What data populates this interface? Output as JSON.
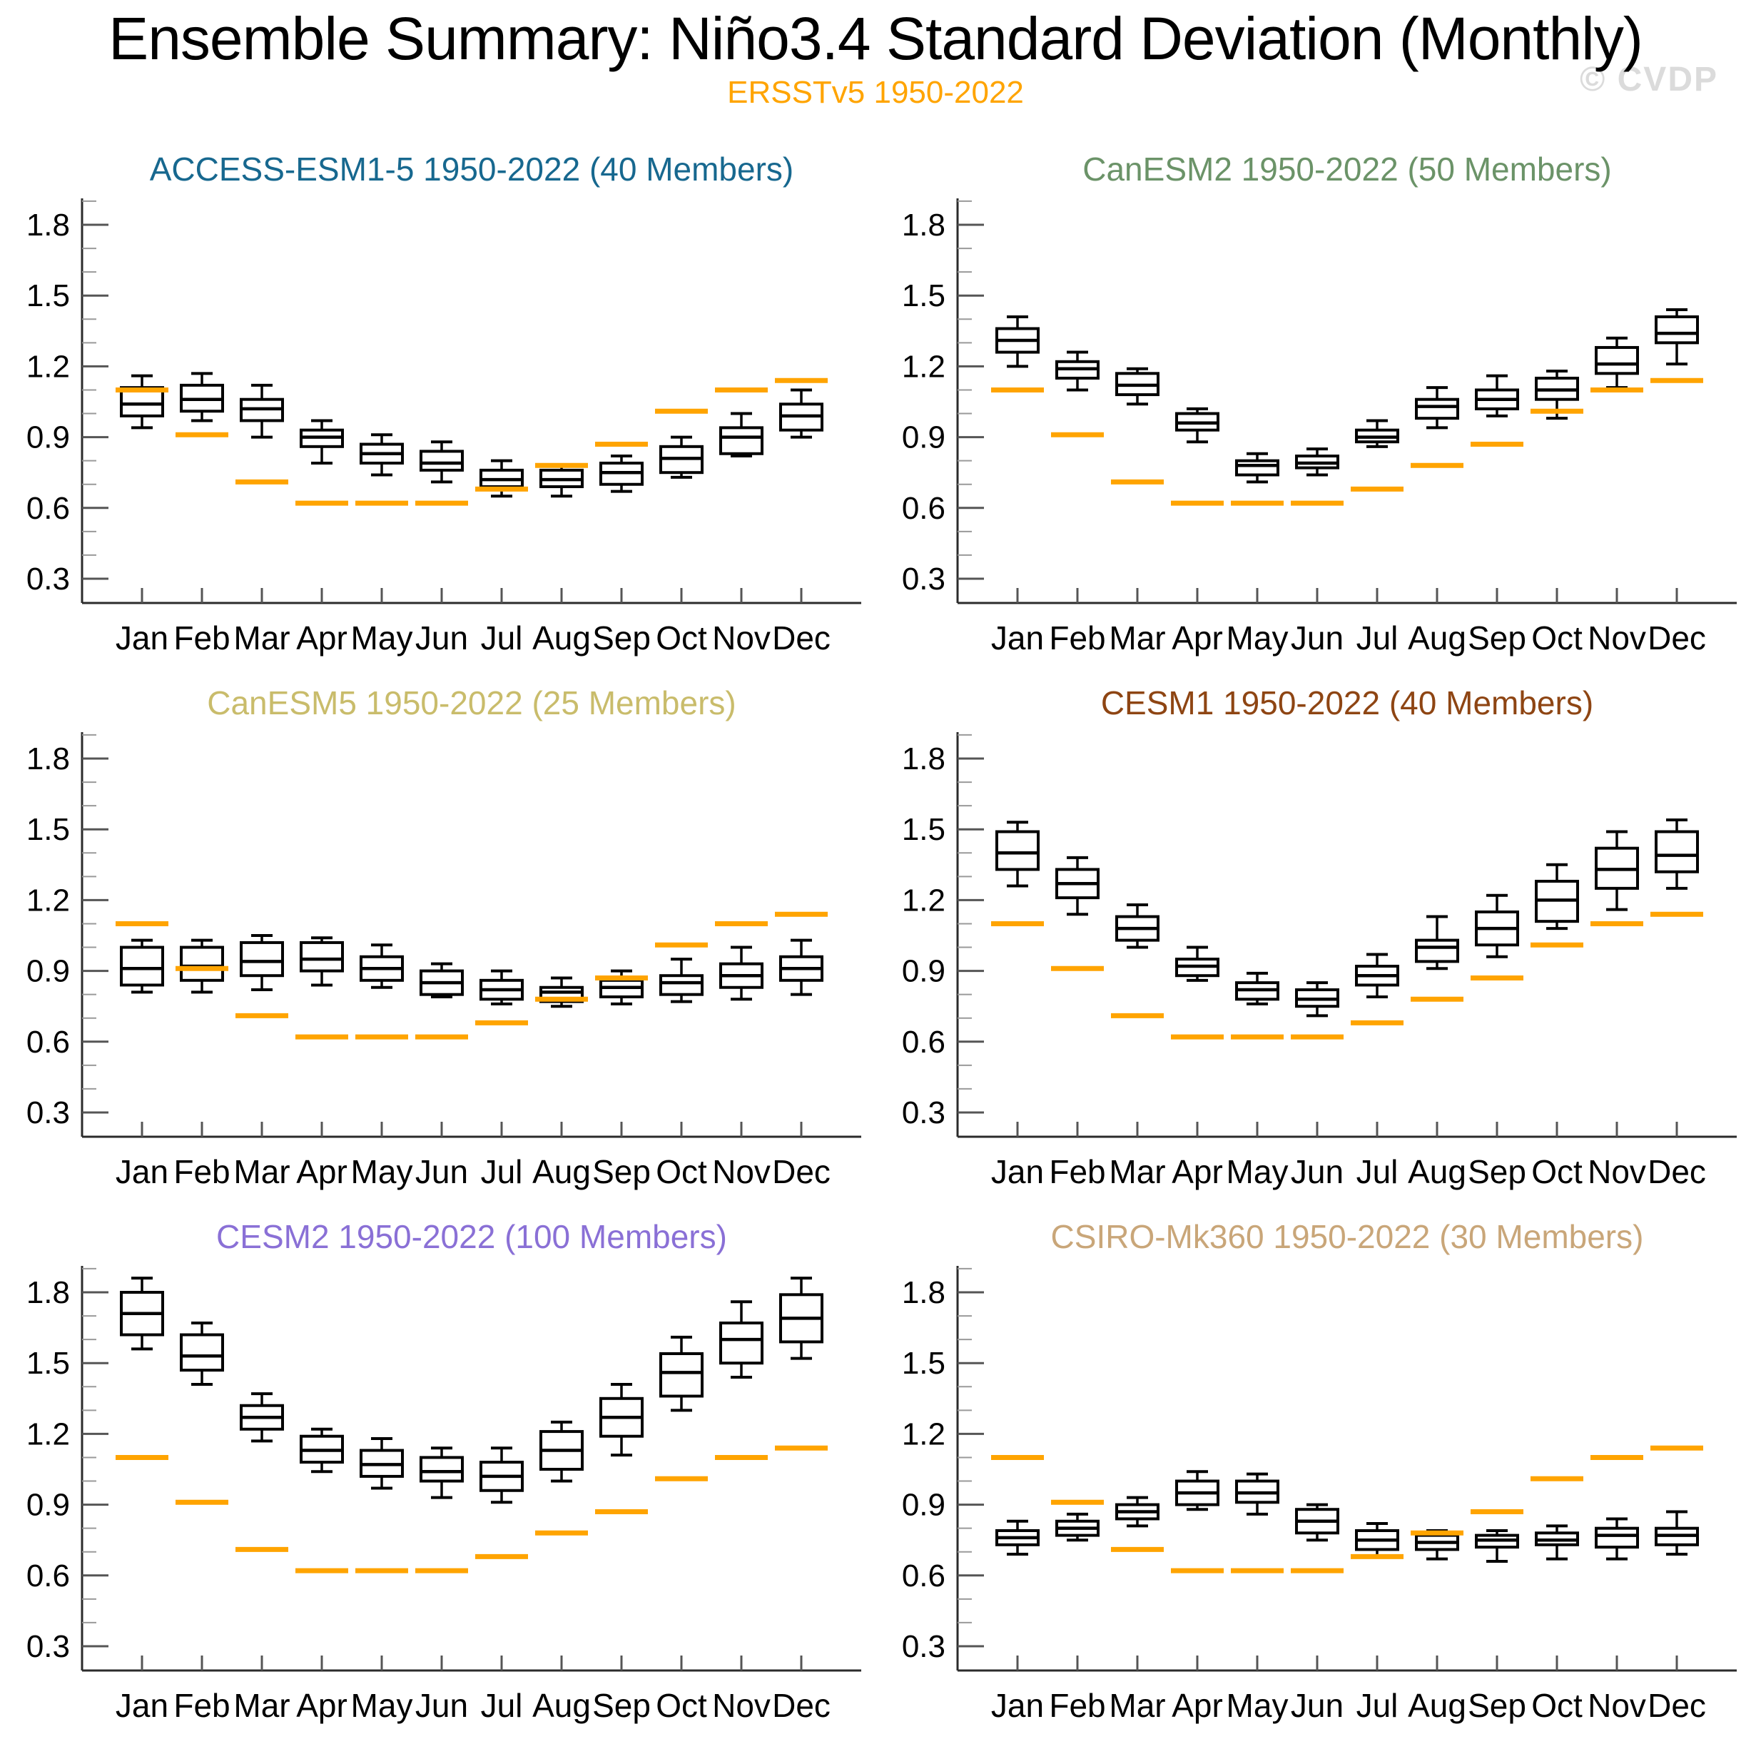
{
  "header": {
    "title": "Ensemble Summary: Niño3.4 Standard Deviation (Monthly)",
    "subtitle": "ERSSTv5 1950-2022",
    "watermark": "© CVDP"
  },
  "chart_data": {
    "type": "boxplot",
    "title": "Ensemble Summary: Niño3.4 Standard Deviation (Monthly)",
    "months": [
      "Jan",
      "Feb",
      "Mar",
      "Apr",
      "May",
      "Jun",
      "Jul",
      "Aug",
      "Sep",
      "Oct",
      "Nov",
      "Dec"
    ],
    "y_axis": {
      "major_ticks": [
        0.3,
        0.6,
        0.9,
        1.2,
        1.5,
        1.8
      ],
      "minor_step": 0.1,
      "minor_range": [
        0.4,
        1.9
      ],
      "range": [
        0.2,
        1.92
      ],
      "tick_label_decimals": 1
    },
    "observation": {
      "label": "ERSSTv5 1950-2022",
      "color": "#FFA400",
      "values": [
        1.1,
        0.91,
        0.71,
        0.62,
        0.62,
        0.62,
        0.68,
        0.78,
        0.87,
        1.01,
        1.1,
        1.14
      ]
    },
    "box_stats_order": [
      "whisker_low",
      "q1",
      "median",
      "q3",
      "whisker_high"
    ],
    "panels": [
      {
        "model": "ACCESS-ESM1-5",
        "title": "ACCESS-ESM1-5 1950-2022 (40 Members)",
        "members": 40,
        "color": "#17688F",
        "boxes": [
          [
            0.94,
            0.99,
            1.04,
            1.11,
            1.16
          ],
          [
            0.97,
            1.01,
            1.06,
            1.12,
            1.17
          ],
          [
            0.9,
            0.97,
            1.02,
            1.06,
            1.12
          ],
          [
            0.79,
            0.86,
            0.9,
            0.93,
            0.97
          ],
          [
            0.74,
            0.79,
            0.83,
            0.87,
            0.91
          ],
          [
            0.71,
            0.76,
            0.79,
            0.84,
            0.88
          ],
          [
            0.65,
            0.69,
            0.72,
            0.76,
            0.8
          ],
          [
            0.65,
            0.69,
            0.72,
            0.76,
            0.78
          ],
          [
            0.67,
            0.7,
            0.75,
            0.79,
            0.82
          ],
          [
            0.73,
            0.75,
            0.81,
            0.86,
            0.9
          ],
          [
            0.82,
            0.83,
            0.9,
            0.94,
            1.0
          ],
          [
            0.9,
            0.93,
            0.99,
            1.04,
            1.1
          ]
        ]
      },
      {
        "model": "CanESM2",
        "title": "CanESM2 1950-2022 (50 Members)",
        "members": 50,
        "color": "#6B9368",
        "boxes": [
          [
            1.2,
            1.26,
            1.31,
            1.36,
            1.41
          ],
          [
            1.1,
            1.15,
            1.19,
            1.22,
            1.26
          ],
          [
            1.04,
            1.08,
            1.12,
            1.17,
            1.19
          ],
          [
            0.88,
            0.93,
            0.96,
            1.0,
            1.02
          ],
          [
            0.71,
            0.74,
            0.78,
            0.8,
            0.83
          ],
          [
            0.74,
            0.77,
            0.79,
            0.82,
            0.85
          ],
          [
            0.86,
            0.88,
            0.9,
            0.93,
            0.97
          ],
          [
            0.94,
            0.98,
            1.03,
            1.06,
            1.11
          ],
          [
            0.99,
            1.02,
            1.06,
            1.1,
            1.16
          ],
          [
            0.98,
            1.06,
            1.1,
            1.15,
            1.18
          ],
          [
            1.11,
            1.17,
            1.21,
            1.28,
            1.32
          ],
          [
            1.21,
            1.3,
            1.34,
            1.41,
            1.44
          ]
        ]
      },
      {
        "model": "CanESM5",
        "title": "CanESM5 1950-2022 (25 Members)",
        "members": 25,
        "color": "#C9BC6B",
        "boxes": [
          [
            0.81,
            0.84,
            0.91,
            1.0,
            1.03
          ],
          [
            0.81,
            0.86,
            0.92,
            1.0,
            1.03
          ],
          [
            0.82,
            0.88,
            0.94,
            1.02,
            1.05
          ],
          [
            0.84,
            0.9,
            0.95,
            1.02,
            1.04
          ],
          [
            0.83,
            0.86,
            0.91,
            0.96,
            1.01
          ],
          [
            0.79,
            0.8,
            0.85,
            0.9,
            0.93
          ],
          [
            0.76,
            0.78,
            0.82,
            0.86,
            0.9
          ],
          [
            0.75,
            0.77,
            0.81,
            0.83,
            0.87
          ],
          [
            0.76,
            0.79,
            0.83,
            0.86,
            0.9
          ],
          [
            0.77,
            0.8,
            0.85,
            0.88,
            0.95
          ],
          [
            0.78,
            0.83,
            0.88,
            0.93,
            1.0
          ],
          [
            0.8,
            0.86,
            0.91,
            0.96,
            1.03
          ]
        ]
      },
      {
        "model": "CESM1",
        "title": "CESM1 1950-2022 (40 Members)",
        "members": 40,
        "color": "#8E4513",
        "boxes": [
          [
            1.26,
            1.33,
            1.4,
            1.49,
            1.53
          ],
          [
            1.14,
            1.21,
            1.27,
            1.33,
            1.38
          ],
          [
            1.0,
            1.03,
            1.08,
            1.13,
            1.18
          ],
          [
            0.86,
            0.88,
            0.92,
            0.95,
            1.0
          ],
          [
            0.76,
            0.78,
            0.82,
            0.85,
            0.89
          ],
          [
            0.71,
            0.75,
            0.78,
            0.82,
            0.85
          ],
          [
            0.79,
            0.84,
            0.88,
            0.92,
            0.97
          ],
          [
            0.91,
            0.94,
            1.0,
            1.03,
            1.13
          ],
          [
            0.96,
            1.01,
            1.08,
            1.15,
            1.22
          ],
          [
            1.08,
            1.11,
            1.2,
            1.28,
            1.35
          ],
          [
            1.16,
            1.25,
            1.33,
            1.42,
            1.49
          ],
          [
            1.25,
            1.32,
            1.39,
            1.49,
            1.54
          ]
        ]
      },
      {
        "model": "CESM2",
        "title": "CESM2 1950-2022 (100 Members)",
        "members": 100,
        "color": "#8A70D6",
        "boxes": [
          [
            1.56,
            1.62,
            1.71,
            1.8,
            1.86
          ],
          [
            1.41,
            1.47,
            1.53,
            1.62,
            1.67
          ],
          [
            1.17,
            1.22,
            1.27,
            1.32,
            1.37
          ],
          [
            1.04,
            1.08,
            1.13,
            1.19,
            1.22
          ],
          [
            0.97,
            1.02,
            1.07,
            1.13,
            1.18
          ],
          [
            0.93,
            1.0,
            1.04,
            1.1,
            1.14
          ],
          [
            0.91,
            0.96,
            1.02,
            1.08,
            1.14
          ],
          [
            1.0,
            1.05,
            1.13,
            1.21,
            1.25
          ],
          [
            1.11,
            1.19,
            1.27,
            1.35,
            1.41
          ],
          [
            1.3,
            1.36,
            1.46,
            1.54,
            1.61
          ],
          [
            1.44,
            1.5,
            1.6,
            1.67,
            1.76
          ],
          [
            1.52,
            1.59,
            1.69,
            1.79,
            1.86
          ]
        ]
      },
      {
        "model": "CSIRO-Mk360",
        "title": "CSIRO-Mk360 1950-2022 (30 Members)",
        "members": 30,
        "color": "#C9A679",
        "boxes": [
          [
            0.69,
            0.73,
            0.76,
            0.79,
            0.83
          ],
          [
            0.75,
            0.77,
            0.8,
            0.83,
            0.86
          ],
          [
            0.81,
            0.84,
            0.87,
            0.9,
            0.93
          ],
          [
            0.88,
            0.9,
            0.95,
            1.0,
            1.04
          ],
          [
            0.86,
            0.91,
            0.95,
            1.0,
            1.03
          ],
          [
            0.75,
            0.78,
            0.83,
            0.88,
            0.9
          ],
          [
            0.68,
            0.71,
            0.75,
            0.79,
            0.82
          ],
          [
            0.67,
            0.71,
            0.74,
            0.77,
            0.79
          ],
          [
            0.66,
            0.72,
            0.75,
            0.77,
            0.79
          ],
          [
            0.67,
            0.73,
            0.75,
            0.78,
            0.81
          ],
          [
            0.67,
            0.72,
            0.77,
            0.8,
            0.84
          ],
          [
            0.69,
            0.73,
            0.77,
            0.8,
            0.87
          ]
        ]
      }
    ],
    "layout_hints": {
      "grid": "3 rows x 2 columns",
      "legend_position": "none",
      "gridlines": false
    }
  }
}
